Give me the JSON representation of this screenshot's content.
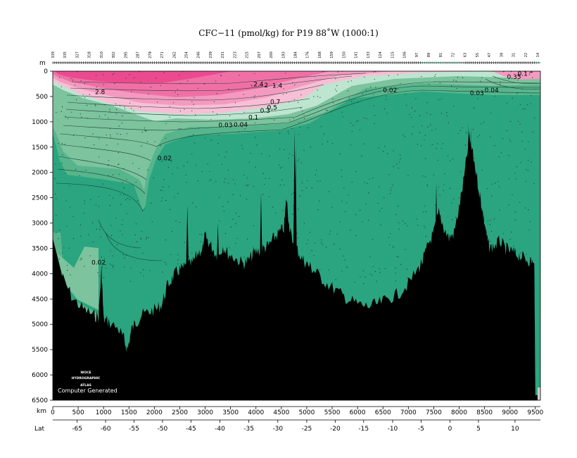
{
  "chart_data": {
    "type": "heatmap",
    "title": "CFC−11 (pmol/kg) for P19 88˚W (1000:1)",
    "y_axis": {
      "unit_label": "m",
      "range": [
        0,
        6500
      ],
      "ticks": [
        0,
        500,
        1000,
        1500,
        2000,
        2500,
        3000,
        3500,
        4000,
        4500,
        5000,
        5500,
        6000,
        6500
      ]
    },
    "x_axis": {
      "unit_label": "km",
      "range": [
        0,
        9600
      ],
      "ticks": [
        0,
        500,
        1000,
        1500,
        2000,
        2500,
        3000,
        3500,
        4000,
        4500,
        5000,
        5500,
        6000,
        6500,
        7000,
        7500,
        8000,
        8500,
        9000,
        9500
      ]
    },
    "lat_axis": {
      "label": "Lat",
      "ticks": [
        {
          "label": "-65",
          "km": 480
        },
        {
          "label": "-60",
          "km": 1040
        },
        {
          "label": "-55",
          "km": 1600
        },
        {
          "label": "-50",
          "km": 2160
        },
        {
          "label": "-45",
          "km": 2720
        },
        {
          "label": "-40",
          "km": 3290
        },
        {
          "label": "-35",
          "km": 3860
        },
        {
          "label": "-30",
          "km": 4430
        },
        {
          "label": "-25",
          "km": 5000
        },
        {
          "label": "-20",
          "km": 5560
        },
        {
          "label": "-15",
          "km": 6120
        },
        {
          "label": "-10",
          "km": 6690
        },
        {
          "label": "-5",
          "km": 7250
        },
        {
          "label": "0",
          "km": 7820
        },
        {
          "label": "5",
          "km": 8380
        },
        {
          "label": "10",
          "km": 9100
        }
      ]
    },
    "station_labels": [
      "339",
      "335",
      "327",
      "318",
      "310",
      "302",
      "295",
      "287",
      "279",
      "271",
      "262",
      "254",
      "246",
      "239",
      "231",
      "223",
      "215",
      "207",
      "200",
      "193",
      "184",
      "176",
      "168",
      "159",
      "150",
      "141",
      "133",
      "124",
      "115",
      "106",
      "97",
      "89",
      "81",
      "72",
      "63",
      "55",
      "47",
      "39",
      "31",
      "22",
      "14"
    ],
    "contour_labels": [
      {
        "text": "2.8",
        "km": 930,
        "depth": 450
      },
      {
        "text": "2.4",
        "km": 4050,
        "depth": 300
      },
      {
        "text": "2",
        "km": 4200,
        "depth": 320
      },
      {
        "text": "1.4",
        "km": 4420,
        "depth": 330
      },
      {
        "text": "0.7",
        "km": 4380,
        "depth": 650
      },
      {
        "text": "0.5",
        "km": 4320,
        "depth": 760
      },
      {
        "text": "0.3",
        "km": 4180,
        "depth": 820
      },
      {
        "text": "0.1",
        "km": 3950,
        "depth": 950
      },
      {
        "text": "0.04",
        "km": 3700,
        "depth": 1100
      },
      {
        "text": "0.03",
        "km": 3400,
        "depth": 1110
      },
      {
        "text": "0.02",
        "km": 2200,
        "depth": 1760
      },
      {
        "text": "0.02",
        "km": 6640,
        "depth": 420
      },
      {
        "text": "0.03",
        "km": 8350,
        "depth": 470
      },
      {
        "text": "0.04",
        "km": 8640,
        "depth": 420
      },
      {
        "text": "0.35",
        "km": 9080,
        "depth": 150
      },
      {
        "text": "0.1",
        "km": 9250,
        "depth": 90
      },
      {
        "text": "1",
        "km": 9420,
        "depth": 30
      },
      {
        "text": "0.02",
        "km": 900,
        "depth": 3820
      }
    ],
    "watermark_lines": [
      "WOCE",
      "HYDROGRAPHIC",
      "ATLAS"
    ],
    "footer_text": "Computer Generated",
    "colors": {
      "background": "#2aa57f",
      "bottom": "#000000",
      "level_003": "#57b58c",
      "level_005": "#7cc39e",
      "level_02": "#bde5d0",
      "level_04": "#f7bfd6",
      "level_08": "#f49ac0",
      "level_15": "#f070a6",
      "level_25": "#eb4a8f"
    }
  }
}
